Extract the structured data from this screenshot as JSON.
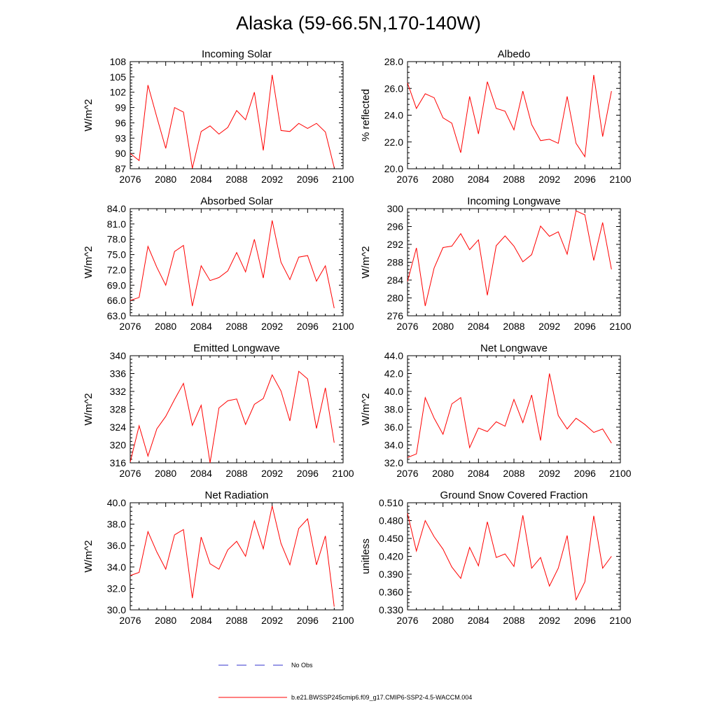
{
  "figure": {
    "title": "Alaska (59-66.5N,170-140W)"
  },
  "legend": {
    "entries": [
      {
        "label": "No Obs",
        "color": "#3333cc",
        "dashed": true
      },
      {
        "label": "b.e21.BWSSP245cmip6.f09_g17.CMIP6-SSP2-4.5-WACCM.004",
        "color": "#ff0000",
        "dashed": false
      }
    ]
  },
  "chart_data": [
    {
      "type": "line",
      "title": "Incoming Solar",
      "ylabel": "W/m^2",
      "xlim": [
        2076,
        2100
      ],
      "ylim": [
        87,
        108
      ],
      "xticks": [
        "2076",
        "2080",
        "2084",
        "2088",
        "2092",
        "2096",
        "2100"
      ],
      "yticks": [
        "87",
        "90",
        "93",
        "96",
        "99",
        "102",
        "105",
        "108"
      ],
      "x": [
        2076,
        2077,
        2078,
        2079,
        2080,
        2081,
        2082,
        2083,
        2084,
        2085,
        2086,
        2087,
        2088,
        2089,
        2090,
        2091,
        2092,
        2093,
        2094,
        2095,
        2096,
        2097,
        2098,
        2099
      ],
      "series": [
        {
          "color": "#ff0000",
          "values": [
            90.0,
            88.6,
            103.4,
            97.1,
            91.0,
            99.0,
            98.1,
            87.1,
            94.3,
            95.4,
            93.8,
            95.1,
            98.4,
            96.6,
            102.0,
            90.6,
            105.4,
            94.5,
            94.3,
            95.9,
            94.9,
            95.9,
            94.2,
            87.2
          ]
        }
      ]
    },
    {
      "type": "line",
      "title": "Albedo",
      "ylabel": "% reflected",
      "xlim": [
        2076,
        2100
      ],
      "ylim": [
        20,
        28
      ],
      "xticks": [
        "2076",
        "2080",
        "2084",
        "2088",
        "2092",
        "2096",
        "2100"
      ],
      "yticks": [
        "20.0",
        "22.0",
        "24.0",
        "26.0",
        "28.0"
      ],
      "x": [
        2076,
        2077,
        2078,
        2079,
        2080,
        2081,
        2082,
        2083,
        2084,
        2085,
        2086,
        2087,
        2088,
        2089,
        2090,
        2091,
        2092,
        2093,
        2094,
        2095,
        2096,
        2097,
        2098,
        2099
      ],
      "series": [
        {
          "color": "#ff0000",
          "values": [
            26.4,
            24.5,
            25.6,
            25.3,
            23.8,
            23.4,
            21.2,
            25.4,
            22.6,
            26.5,
            24.5,
            24.3,
            22.9,
            25.8,
            23.3,
            22.1,
            22.2,
            21.9,
            25.4,
            21.9,
            20.9,
            27.0,
            22.4,
            25.8
          ]
        }
      ]
    },
    {
      "type": "line",
      "title": "Absorbed Solar",
      "ylabel": "W/m^2",
      "xlim": [
        2076,
        2100
      ],
      "ylim": [
        63,
        84
      ],
      "xticks": [
        "2076",
        "2080",
        "2084",
        "2088",
        "2092",
        "2096",
        "2100"
      ],
      "yticks": [
        "63.0",
        "66.0",
        "69.0",
        "72.0",
        "75.0",
        "78.0",
        "81.0",
        "84.0"
      ],
      "x": [
        2076,
        2077,
        2078,
        2079,
        2080,
        2081,
        2082,
        2083,
        2084,
        2085,
        2086,
        2087,
        2088,
        2089,
        2090,
        2091,
        2092,
        2093,
        2094,
        2095,
        2096,
        2097,
        2098,
        2099
      ],
      "series": [
        {
          "color": "#ff0000",
          "values": [
            66.0,
            66.6,
            76.6,
            72.5,
            69.0,
            75.6,
            76.8,
            64.9,
            72.8,
            69.9,
            70.5,
            71.8,
            75.4,
            71.6,
            78.0,
            70.4,
            81.7,
            73.5,
            70.1,
            74.5,
            74.8,
            69.8,
            72.8,
            64.5
          ]
        }
      ]
    },
    {
      "type": "line",
      "title": "Incoming Longwave",
      "ylabel": "W/m^2",
      "xlim": [
        2076,
        2100
      ],
      "ylim": [
        276,
        300
      ],
      "xticks": [
        "2076",
        "2080",
        "2084",
        "2088",
        "2092",
        "2096",
        "2100"
      ],
      "yticks": [
        "276",
        "280",
        "284",
        "288",
        "292",
        "296",
        "300"
      ],
      "x": [
        2076,
        2077,
        2078,
        2079,
        2080,
        2081,
        2082,
        2083,
        2084,
        2085,
        2086,
        2087,
        2088,
        2089,
        2090,
        2091,
        2092,
        2093,
        2094,
        2095,
        2096,
        2097,
        2098,
        2099
      ],
      "series": [
        {
          "color": "#ff0000",
          "values": [
            283.7,
            291.2,
            278.2,
            286.7,
            291.3,
            291.6,
            294.4,
            290.8,
            293.0,
            280.6,
            291.7,
            293.9,
            291.6,
            288.1,
            289.7,
            296.1,
            293.8,
            294.8,
            289.8,
            299.5,
            298.6,
            288.4,
            296.9,
            286.4
          ]
        }
      ]
    },
    {
      "type": "line",
      "title": "Emitted Longwave",
      "ylabel": "W/m^2",
      "xlim": [
        2076,
        2100
      ],
      "ylim": [
        316,
        340
      ],
      "xticks": [
        "2076",
        "2080",
        "2084",
        "2088",
        "2092",
        "2096",
        "2100"
      ],
      "yticks": [
        "316",
        "320",
        "324",
        "328",
        "332",
        "336",
        "340"
      ],
      "x": [
        2076,
        2077,
        2078,
        2079,
        2080,
        2081,
        2082,
        2083,
        2084,
        2085,
        2086,
        2087,
        2088,
        2089,
        2090,
        2091,
        2092,
        2093,
        2094,
        2095,
        2096,
        2097,
        2098,
        2099
      ],
      "series": [
        {
          "color": "#ff0000",
          "values": [
            316.2,
            324.3,
            317.5,
            323.6,
            326.4,
            330.2,
            333.8,
            324.4,
            328.9,
            316.0,
            328.3,
            329.9,
            330.3,
            324.6,
            329.1,
            330.4,
            335.7,
            332.1,
            325.4,
            336.5,
            334.8,
            323.7,
            332.8,
            320.5
          ]
        }
      ]
    },
    {
      "type": "line",
      "title": "Net Longwave",
      "ylabel": "W/m^2",
      "xlim": [
        2076,
        2100
      ],
      "ylim": [
        32,
        44
      ],
      "xticks": [
        "2076",
        "2080",
        "2084",
        "2088",
        "2092",
        "2096",
        "2100"
      ],
      "yticks": [
        "32.0",
        "34.0",
        "36.0",
        "38.0",
        "40.0",
        "42.0",
        "44.0"
      ],
      "x": [
        2076,
        2077,
        2078,
        2079,
        2080,
        2081,
        2082,
        2083,
        2084,
        2085,
        2086,
        2087,
        2088,
        2089,
        2090,
        2091,
        2092,
        2093,
        2094,
        2095,
        2096,
        2097,
        2098,
        2099
      ],
      "series": [
        {
          "color": "#ff0000",
          "values": [
            32.6,
            33.0,
            39.3,
            37.0,
            35.2,
            38.6,
            39.3,
            33.7,
            35.9,
            35.5,
            36.6,
            36.1,
            39.1,
            36.5,
            39.6,
            34.5,
            42.0,
            37.3,
            35.8,
            37.0,
            36.3,
            35.4,
            35.8,
            34.2
          ]
        }
      ]
    },
    {
      "type": "line",
      "title": "Net Radiation",
      "ylabel": "W/m^2",
      "xlim": [
        2076,
        2100
      ],
      "ylim": [
        30,
        40
      ],
      "xticks": [
        "2076",
        "2080",
        "2084",
        "2088",
        "2092",
        "2096",
        "2100"
      ],
      "yticks": [
        "30.0",
        "32.0",
        "34.0",
        "36.0",
        "38.0",
        "40.0"
      ],
      "x": [
        2076,
        2077,
        2078,
        2079,
        2080,
        2081,
        2082,
        2083,
        2084,
        2085,
        2086,
        2087,
        2088,
        2089,
        2090,
        2091,
        2092,
        2093,
        2094,
        2095,
        2096,
        2097,
        2098,
        2099
      ],
      "series": [
        {
          "color": "#ff0000",
          "values": [
            33.2,
            33.5,
            37.3,
            35.4,
            33.8,
            37.0,
            37.5,
            31.1,
            36.8,
            34.3,
            33.8,
            35.6,
            36.4,
            35.0,
            38.3,
            35.7,
            39.7,
            36.2,
            34.2,
            37.6,
            38.5,
            34.2,
            36.9,
            30.3
          ]
        }
      ]
    },
    {
      "type": "line",
      "title": "Ground Snow Covered Fraction",
      "ylabel": "unitless",
      "xlim": [
        2076,
        2100
      ],
      "ylim": [
        0.33,
        0.51
      ],
      "xticks": [
        "2076",
        "2080",
        "2084",
        "2088",
        "2092",
        "2096",
        "2100"
      ],
      "yticks": [
        "0.330",
        "0.360",
        "0.390",
        "0.420",
        "0.450",
        "0.480",
        "0.510"
      ],
      "x": [
        2076,
        2077,
        2078,
        2079,
        2080,
        2081,
        2082,
        2083,
        2084,
        2085,
        2086,
        2087,
        2088,
        2089,
        2090,
        2091,
        2092,
        2093,
        2094,
        2095,
        2096,
        2097,
        2098,
        2099
      ],
      "series": [
        {
          "color": "#ff0000",
          "values": [
            0.492,
            0.429,
            0.48,
            0.453,
            0.432,
            0.402,
            0.383,
            0.435,
            0.404,
            0.478,
            0.418,
            0.424,
            0.403,
            0.489,
            0.4,
            0.418,
            0.37,
            0.4,
            0.455,
            0.347,
            0.377,
            0.488,
            0.4,
            0.42
          ]
        }
      ]
    }
  ]
}
